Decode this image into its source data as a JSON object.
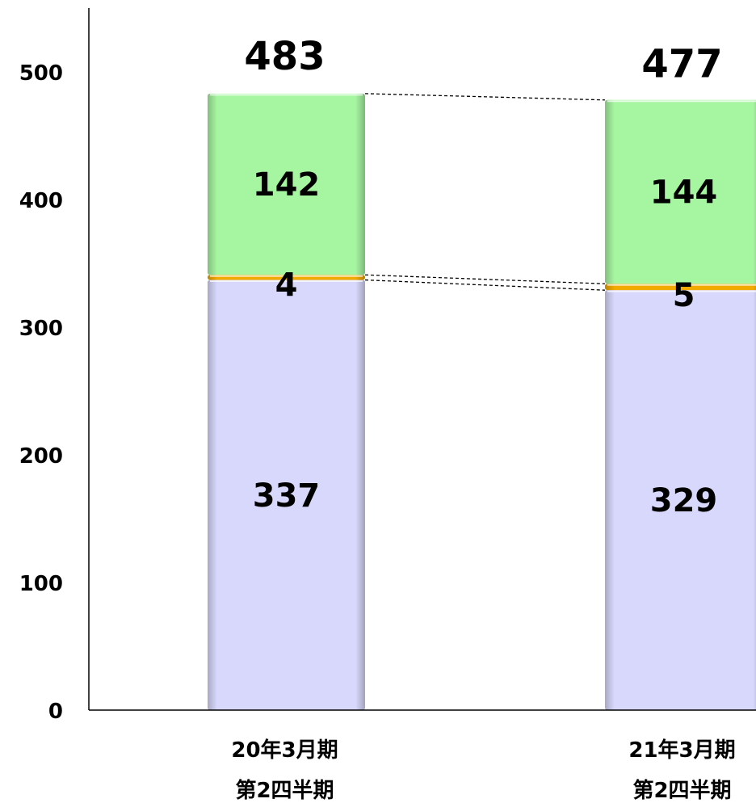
{
  "chart_data": {
    "type": "bar",
    "stacked": true,
    "categories": [
      [
        "20年3月期",
        "第2四半期"
      ],
      [
        "21年3月期",
        "第2四半期"
      ]
    ],
    "series": [
      {
        "values": [
          337,
          329
        ],
        "color": "#d8d8fc"
      },
      {
        "values": [
          4,
          5
        ],
        "color": "#f2a900"
      },
      {
        "values": [
          142,
          144
        ],
        "color": "#a6f5a1"
      }
    ],
    "totals": [
      483,
      477
    ],
    "ylim": [
      0,
      550
    ],
    "yticks": [
      0,
      100,
      200,
      300,
      400,
      500
    ],
    "grid": false,
    "legend": "none",
    "connector_lines": "dashed"
  }
}
